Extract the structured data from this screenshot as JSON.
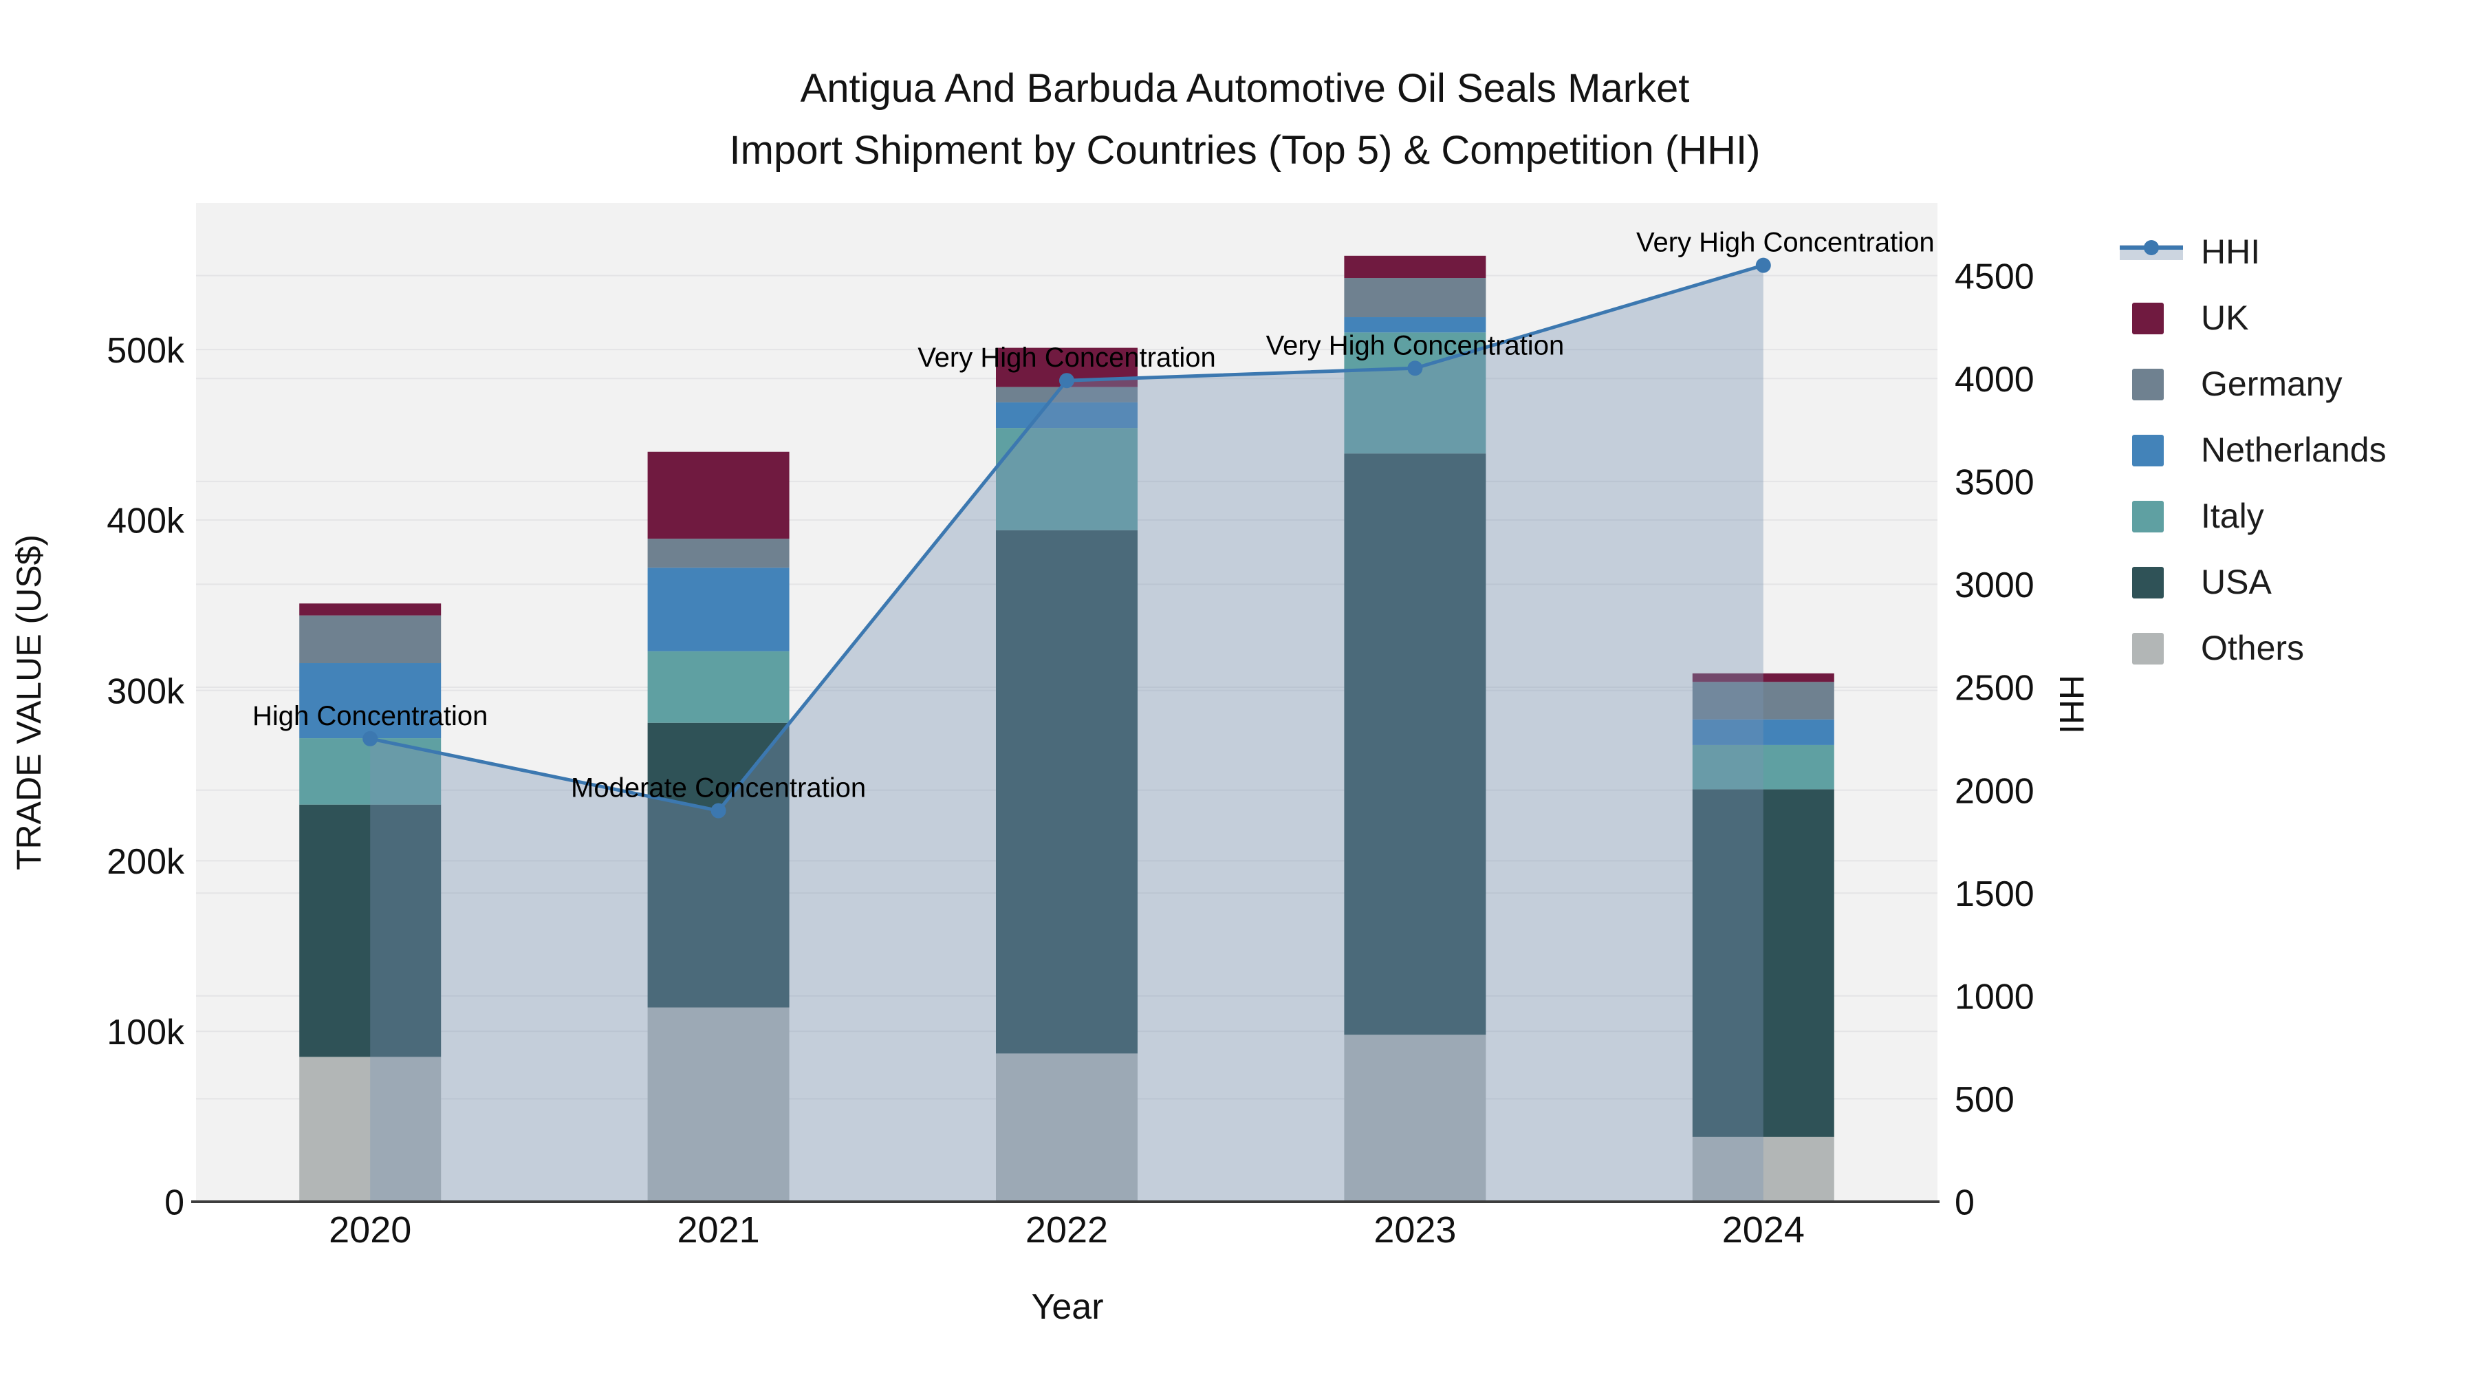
{
  "title": {
    "line1": "Antigua And Barbuda Automotive Oil Seals Market",
    "line2": "Import Shipment by Countries (Top 5) & Competition (HHI)"
  },
  "chart_data": {
    "type": "bar",
    "subtype": "stacked_bars_with_line_overlay",
    "title": "Antigua And Barbuda Automotive Oil Seals Market Import Shipment by Countries (Top 5) & Competition (HHI)",
    "categories": [
      "2020",
      "2021",
      "2022",
      "2023",
      "2024"
    ],
    "value_unit": "US$",
    "series": [
      {
        "name": "Others",
        "color": "#b2b6b6",
        "values": [
          85000,
          114000,
          87000,
          98000,
          38000
        ]
      },
      {
        "name": "USA",
        "color": "#2f5257",
        "values": [
          148000,
          167000,
          307000,
          341000,
          204000
        ]
      },
      {
        "name": "Italy",
        "color": "#5fa0a2",
        "values": [
          39000,
          42000,
          60000,
          71000,
          26000
        ]
      },
      {
        "name": "Netherlands",
        "color": "#4383b9",
        "values": [
          44000,
          49000,
          15000,
          9000,
          15000
        ]
      },
      {
        "name": "Germany",
        "color": "#6f8190",
        "values": [
          28000,
          17000,
          9000,
          23000,
          22000
        ]
      },
      {
        "name": "UK",
        "color": "#701a40",
        "values": [
          7000,
          51000,
          23000,
          13000,
          5000
        ]
      }
    ],
    "bar_totals": [
      351000,
      440000,
      501000,
      555000,
      310000
    ],
    "line_series": {
      "name": "HHI",
      "axis": "right",
      "color": "#3c78b0",
      "area_fill": "rgba(122,146,180,0.38)",
      "values": [
        2250,
        1900,
        3990,
        4050,
        4550
      ]
    },
    "annotations": [
      {
        "category": "2020",
        "text": "High Concentration"
      },
      {
        "category": "2021",
        "text": "Moderate Concentration"
      },
      {
        "category": "2022",
        "text": "Very High Concentration"
      },
      {
        "category": "2023",
        "text": "Very High Concentration"
      },
      {
        "category": "2024",
        "text": "Very High Concentration"
      }
    ],
    "x_axis": {
      "title": "Year"
    },
    "y_left": {
      "title": "TRADE VALUE (US$)",
      "tick_labels": [
        "0",
        "100k",
        "200k",
        "300k",
        "400k",
        "500k"
      ],
      "tick_values": [
        0,
        100000,
        200000,
        300000,
        400000,
        500000
      ],
      "range": [
        0,
        586000
      ]
    },
    "y_right": {
      "title": "HHI",
      "tick_labels": [
        "0",
        "500",
        "1000",
        "1500",
        "2000",
        "2500",
        "3000",
        "3500",
        "4000",
        "4500"
      ],
      "tick_values": [
        0,
        500,
        1000,
        1500,
        2000,
        2500,
        3000,
        3500,
        4000,
        4500
      ],
      "range": [
        0,
        4853
      ]
    },
    "legend": [
      "HHI",
      "UK",
      "Germany",
      "Netherlands",
      "Italy",
      "USA",
      "Others"
    ],
    "legend_position": "right",
    "grid": true,
    "plot_bg": "#f2f2f2",
    "gridline_color": "#e4e4e6",
    "axisline_color": "#3d3d3d"
  }
}
